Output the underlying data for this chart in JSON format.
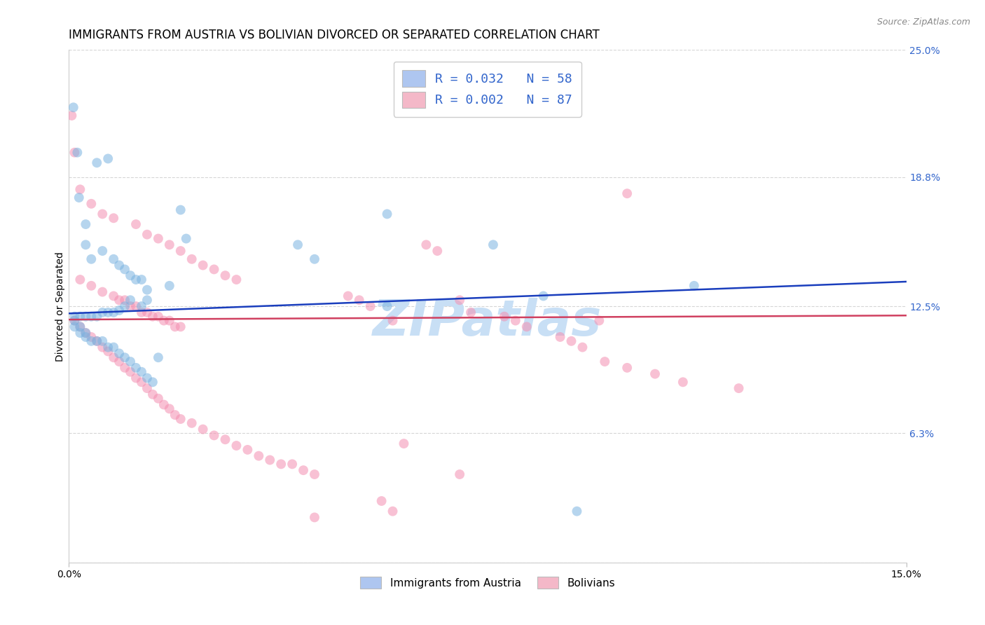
{
  "title": "IMMIGRANTS FROM AUSTRIA VS BOLIVIAN DIVORCED OR SEPARATED CORRELATION CHART",
  "source": "Source: ZipAtlas.com",
  "ylabel": "Divorced or Separated",
  "xlim": [
    0.0,
    0.15
  ],
  "ylim": [
    0.0,
    0.25
  ],
  "xticklabels": [
    "0.0%",
    "15.0%"
  ],
  "ytick_right_vals": [
    0.0,
    0.063,
    0.125,
    0.188,
    0.25
  ],
  "ytick_right_labels": [
    "",
    "6.3%",
    "12.5%",
    "18.8%",
    "25.0%"
  ],
  "legend_label1": "Immigrants from Austria",
  "legend_label2": "Bolivians",
  "watermark": "ZIPatlas",
  "blue_line_x": [
    0.0,
    0.15
  ],
  "blue_line_y": [
    0.1215,
    0.137
  ],
  "pink_line_x": [
    0.0,
    0.15
  ],
  "pink_line_y": [
    0.1185,
    0.1205
  ],
  "scatter_size": 100,
  "scatter_alpha": 0.55,
  "line_width": 1.8,
  "blue_color": "#7ab3e0",
  "pink_color": "#f48fb1",
  "blue_fill": "#aec6f0",
  "pink_fill": "#f4b8c8",
  "blue_line_color": "#1a3ebd",
  "pink_line_color": "#d04060",
  "background_color": "#ffffff",
  "grid_color": "#cccccc",
  "title_fontsize": 12,
  "axis_label_fontsize": 10,
  "tick_fontsize": 10,
  "watermark_fontsize": 52,
  "watermark_color": "#c8dff5",
  "legend_r_color": "#3366cc",
  "blue_pts": [
    [
      0.0008,
      0.222
    ],
    [
      0.0015,
      0.2
    ],
    [
      0.0018,
      0.178
    ],
    [
      0.003,
      0.165
    ],
    [
      0.005,
      0.195
    ],
    [
      0.007,
      0.197
    ],
    [
      0.003,
      0.155
    ],
    [
      0.006,
      0.152
    ],
    [
      0.004,
      0.148
    ],
    [
      0.008,
      0.148
    ],
    [
      0.009,
      0.145
    ],
    [
      0.01,
      0.143
    ],
    [
      0.011,
      0.14
    ],
    [
      0.012,
      0.138
    ],
    [
      0.013,
      0.138
    ],
    [
      0.014,
      0.133
    ],
    [
      0.014,
      0.128
    ],
    [
      0.013,
      0.125
    ],
    [
      0.011,
      0.128
    ],
    [
      0.01,
      0.125
    ],
    [
      0.009,
      0.123
    ],
    [
      0.008,
      0.122
    ],
    [
      0.007,
      0.122
    ],
    [
      0.006,
      0.122
    ],
    [
      0.005,
      0.12
    ],
    [
      0.004,
      0.12
    ],
    [
      0.003,
      0.12
    ],
    [
      0.002,
      0.12
    ],
    [
      0.001,
      0.12
    ],
    [
      0.001,
      0.118
    ],
    [
      0.001,
      0.115
    ],
    [
      0.002,
      0.115
    ],
    [
      0.002,
      0.112
    ],
    [
      0.003,
      0.112
    ],
    [
      0.003,
      0.11
    ],
    [
      0.004,
      0.108
    ],
    [
      0.005,
      0.108
    ],
    [
      0.006,
      0.108
    ],
    [
      0.007,
      0.105
    ],
    [
      0.008,
      0.105
    ],
    [
      0.009,
      0.102
    ],
    [
      0.01,
      0.1
    ],
    [
      0.011,
      0.098
    ],
    [
      0.012,
      0.095
    ],
    [
      0.013,
      0.093
    ],
    [
      0.014,
      0.09
    ],
    [
      0.015,
      0.088
    ],
    [
      0.016,
      0.1
    ],
    [
      0.018,
      0.135
    ],
    [
      0.02,
      0.172
    ],
    [
      0.021,
      0.158
    ],
    [
      0.041,
      0.155
    ],
    [
      0.044,
      0.148
    ],
    [
      0.057,
      0.17
    ],
    [
      0.057,
      0.125
    ],
    [
      0.076,
      0.155
    ],
    [
      0.085,
      0.13
    ],
    [
      0.091,
      0.025
    ],
    [
      0.112,
      0.135
    ]
  ],
  "pink_pts": [
    [
      0.0005,
      0.218
    ],
    [
      0.001,
      0.2
    ],
    [
      0.002,
      0.182
    ],
    [
      0.004,
      0.175
    ],
    [
      0.006,
      0.17
    ],
    [
      0.008,
      0.168
    ],
    [
      0.012,
      0.165
    ],
    [
      0.014,
      0.16
    ],
    [
      0.016,
      0.158
    ],
    [
      0.018,
      0.155
    ],
    [
      0.02,
      0.152
    ],
    [
      0.022,
      0.148
    ],
    [
      0.024,
      0.145
    ],
    [
      0.026,
      0.143
    ],
    [
      0.028,
      0.14
    ],
    [
      0.03,
      0.138
    ],
    [
      0.002,
      0.138
    ],
    [
      0.004,
      0.135
    ],
    [
      0.006,
      0.132
    ],
    [
      0.008,
      0.13
    ],
    [
      0.009,
      0.128
    ],
    [
      0.01,
      0.128
    ],
    [
      0.011,
      0.125
    ],
    [
      0.012,
      0.125
    ],
    [
      0.013,
      0.122
    ],
    [
      0.014,
      0.122
    ],
    [
      0.015,
      0.12
    ],
    [
      0.016,
      0.12
    ],
    [
      0.017,
      0.118
    ],
    [
      0.018,
      0.118
    ],
    [
      0.019,
      0.115
    ],
    [
      0.02,
      0.115
    ],
    [
      0.001,
      0.118
    ],
    [
      0.002,
      0.115
    ],
    [
      0.003,
      0.112
    ],
    [
      0.004,
      0.11
    ],
    [
      0.005,
      0.108
    ],
    [
      0.006,
      0.105
    ],
    [
      0.007,
      0.103
    ],
    [
      0.008,
      0.1
    ],
    [
      0.009,
      0.098
    ],
    [
      0.01,
      0.095
    ],
    [
      0.011,
      0.093
    ],
    [
      0.012,
      0.09
    ],
    [
      0.013,
      0.088
    ],
    [
      0.014,
      0.085
    ],
    [
      0.015,
      0.082
    ],
    [
      0.016,
      0.08
    ],
    [
      0.017,
      0.077
    ],
    [
      0.018,
      0.075
    ],
    [
      0.019,
      0.072
    ],
    [
      0.02,
      0.07
    ],
    [
      0.022,
      0.068
    ],
    [
      0.024,
      0.065
    ],
    [
      0.026,
      0.062
    ],
    [
      0.028,
      0.06
    ],
    [
      0.03,
      0.057
    ],
    [
      0.032,
      0.055
    ],
    [
      0.034,
      0.052
    ],
    [
      0.036,
      0.05
    ],
    [
      0.038,
      0.048
    ],
    [
      0.04,
      0.048
    ],
    [
      0.042,
      0.045
    ],
    [
      0.044,
      0.043
    ],
    [
      0.05,
      0.13
    ],
    [
      0.052,
      0.128
    ],
    [
      0.054,
      0.125
    ],
    [
      0.058,
      0.118
    ],
    [
      0.064,
      0.155
    ],
    [
      0.066,
      0.152
    ],
    [
      0.07,
      0.128
    ],
    [
      0.072,
      0.122
    ],
    [
      0.078,
      0.12
    ],
    [
      0.08,
      0.118
    ],
    [
      0.082,
      0.115
    ],
    [
      0.088,
      0.11
    ],
    [
      0.09,
      0.108
    ],
    [
      0.092,
      0.105
    ],
    [
      0.095,
      0.118
    ],
    [
      0.096,
      0.098
    ],
    [
      0.1,
      0.095
    ],
    [
      0.105,
      0.092
    ],
    [
      0.11,
      0.088
    ],
    [
      0.12,
      0.085
    ],
    [
      0.06,
      0.058
    ],
    [
      0.07,
      0.043
    ],
    [
      0.056,
      0.03
    ],
    [
      0.058,
      0.025
    ],
    [
      0.044,
      0.022
    ],
    [
      0.1,
      0.18
    ]
  ]
}
